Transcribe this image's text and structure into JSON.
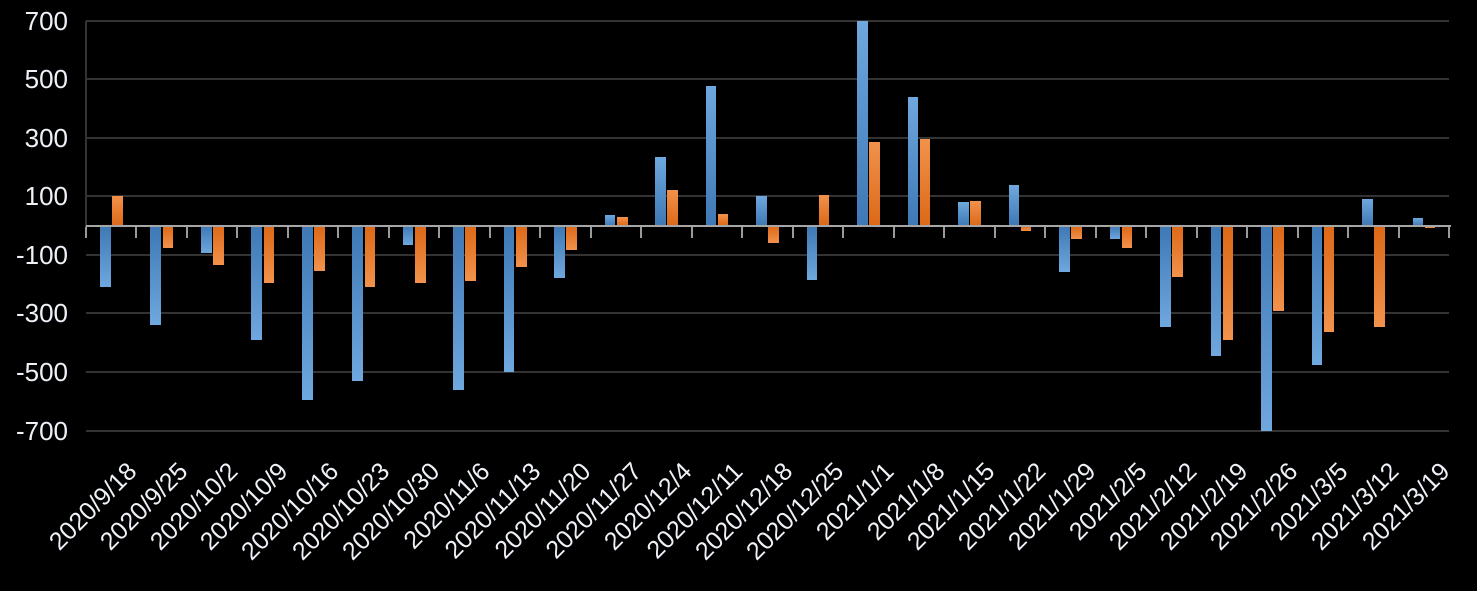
{
  "chart_data": {
    "type": "bar",
    "title": "",
    "xlabel": "",
    "ylabel": "",
    "categories": [
      "2020/9/18",
      "2020/9/25",
      "2020/10/2",
      "2020/10/9",
      "2020/10/16",
      "2020/10/23",
      "2020/10/30",
      "2020/11/6",
      "2020/11/13",
      "2020/11/20",
      "2020/11/27",
      "2020/12/4",
      "2020/12/11",
      "2020/12/18",
      "2020/12/25",
      "2021/1/1",
      "2021/1/8",
      "2021/1/15",
      "2021/1/22",
      "2021/1/29",
      "2021/2/5",
      "2021/2/12",
      "2021/2/19",
      "2021/2/26",
      "2021/3/5",
      "2021/3/12",
      "2021/3/19"
    ],
    "series": [
      {
        "name": "blue",
        "color": "#5B9BD5",
        "color_tip": "#6FA8DE",
        "color_base": "#3E78B5",
        "values": [
          -210,
          -340,
          -95,
          -390,
          -595,
          -530,
          -65,
          -560,
          -500,
          -180,
          35,
          235,
          475,
          100,
          -185,
          700,
          440,
          80,
          140,
          -160,
          -45,
          -345,
          -445,
          -700,
          -475,
          90,
          25
        ]
      },
      {
        "name": "orange",
        "color": "#ED7D31",
        "color_tip": "#F2924C",
        "color_base": "#DC6816",
        "values": [
          100,
          -75,
          -135,
          -195,
          -155,
          -210,
          -195,
          -190,
          -140,
          -85,
          30,
          120,
          40,
          -60,
          105,
          285,
          295,
          85,
          -20,
          -45,
          -75,
          -175,
          -390,
          -290,
          -365,
          -345,
          -8
        ]
      }
    ],
    "y_axis": {
      "min": -700,
      "max": 700,
      "tick_step": 200,
      "tick_labels": [
        "700",
        "500",
        "300",
        "100",
        "-100",
        "-300",
        "-500",
        "-700"
      ],
      "ticks": [
        700,
        500,
        300,
        100,
        -100,
        -300,
        -500,
        -700
      ]
    },
    "legend": "none",
    "grid": "horizontal",
    "background": "#000000",
    "gridline_color": "#333333",
    "axis_line_color": "#a6a6a6",
    "label_color": "#eef1f7"
  }
}
